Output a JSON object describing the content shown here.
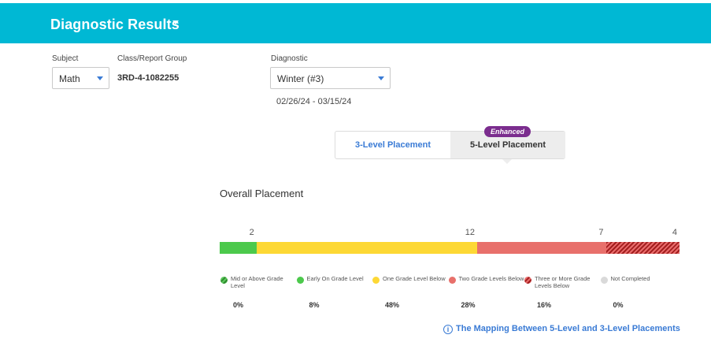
{
  "header": {
    "title": "Diagnostic Results"
  },
  "filters": {
    "subject_label": "Subject",
    "subject_value": "Math",
    "group_label": "Class/Report Group",
    "group_value": "3RD-4-1082255",
    "diagnostic_label": "Diagnostic",
    "diagnostic_value": "Winter (#3)",
    "date_range": "02/26/24 - 03/15/24"
  },
  "tabs": {
    "three_level": "3-Level Placement",
    "five_level": "5-Level Placement",
    "badge": "Enhanced",
    "selected": "five_level"
  },
  "placement": {
    "title": "Overall Placement",
    "categories": [
      {
        "label": "Mid or Above Grade Level",
        "count": "",
        "percent": "0%",
        "fraction": 0,
        "color": "#2e8b2e",
        "pattern": "hatched"
      },
      {
        "label": "Early On Grade Level",
        "count": "2",
        "percent": "8%",
        "fraction": 0.08,
        "color": "#4cc94c",
        "pattern": "solid"
      },
      {
        "label": "One Grade Level Below",
        "count": "12",
        "percent": "48%",
        "fraction": 0.48,
        "color": "#fdd835",
        "pattern": "solid"
      },
      {
        "label": "Two Grade Levels Below",
        "count": "7",
        "percent": "28%",
        "fraction": 0.28,
        "color": "#e8706b",
        "pattern": "solid"
      },
      {
        "label": "Three or More Grade Levels Below",
        "count": "4",
        "percent": "16%",
        "fraction": 0.16,
        "color": "#a31f1f",
        "pattern": "hatched"
      },
      {
        "label": "Not Completed",
        "count": "",
        "percent": "0%",
        "fraction": 0,
        "color": "#d9d9d9",
        "pattern": "solid"
      }
    ]
  },
  "link": {
    "mapping": "The Mapping Between 5-Level and 3-Level Placements",
    "icon": "info-icon"
  }
}
